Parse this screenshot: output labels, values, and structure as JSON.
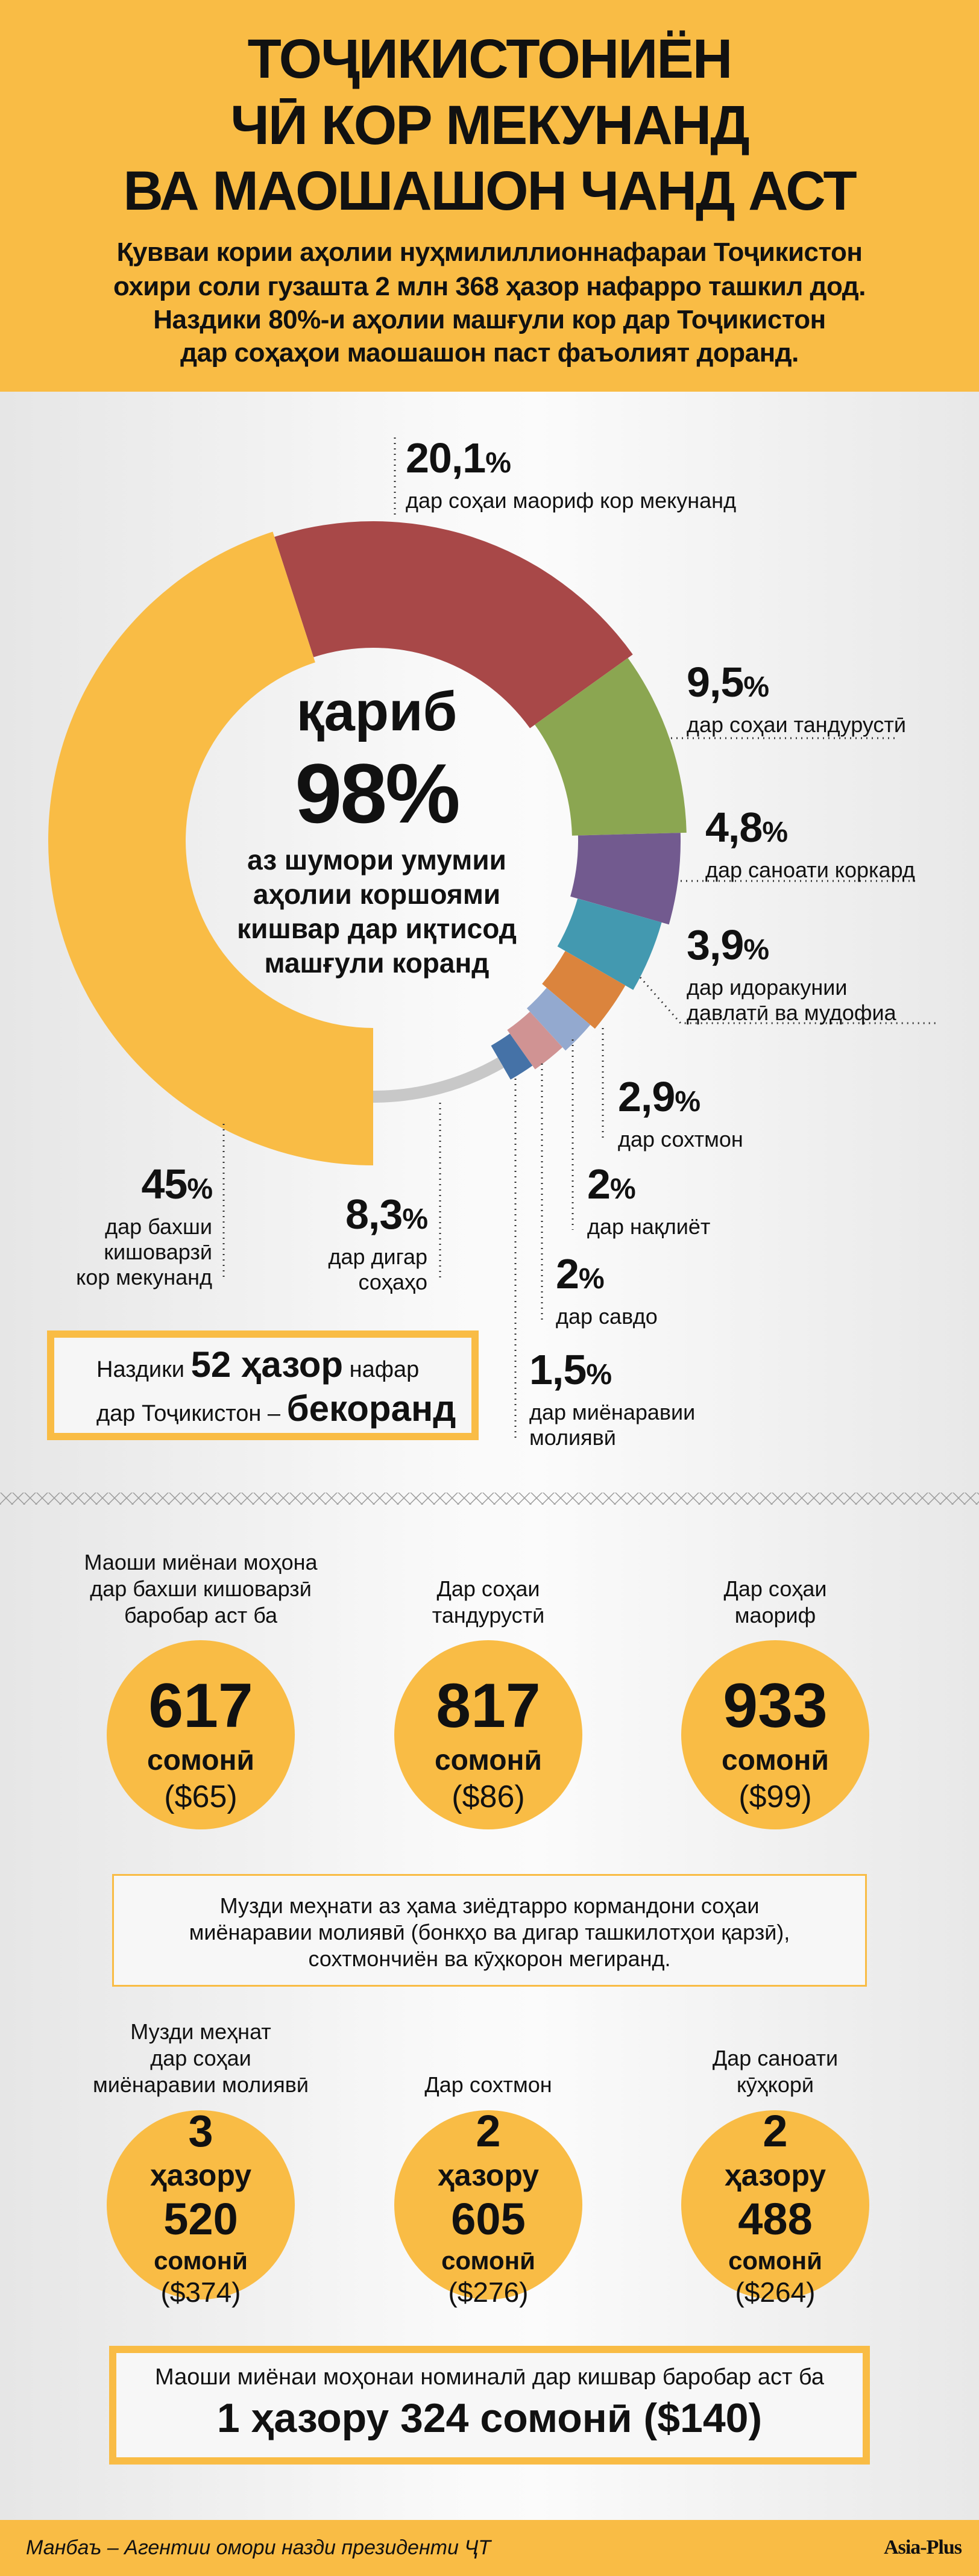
{
  "header": {
    "title_lines": [
      "ТОҶИКИСТОНИЁН",
      "ЧӢ КОР МЕКУНАНД",
      "ВА МАОШАШОН ЧАНД АСТ"
    ],
    "subtitle_lines": [
      "Қувваи кории аҳолии нуҳмилиллионнафараи Тоҷикистон",
      "охири соли гузашта 2 млн 368 ҳазор нафарро ташкил дод.",
      "Наздики 80%-и аҳолии машғули кор дар Тоҷикистон",
      "дар соҳаҳои маошашон паст фаъолият доранд."
    ],
    "background_color": "#f9bc45"
  },
  "chart_data": {
    "type": "pie",
    "variant": "donut",
    "percent_sign": "%",
    "center": {
      "prefix": "қариб",
      "value": "98%",
      "lines": [
        "аз шумори умумии",
        "аҳолии коршоями",
        "кишвар дар иқтисод",
        "машғули коранд"
      ]
    },
    "slices": [
      {
        "value": 20.1,
        "pct": "20,1",
        "label_lines": [
          "дар соҳаи маориф кор мекунанд"
        ],
        "color": "#a84848"
      },
      {
        "value": 9.5,
        "pct": "9,5",
        "label_lines": [
          "дар соҳаи тандурустӣ"
        ],
        "color": "#8ba651"
      },
      {
        "value": 4.8,
        "pct": "4,8",
        "label_lines": [
          "дар саноати коркард"
        ],
        "color": "#725a8f"
      },
      {
        "value": 3.9,
        "pct": "3,9",
        "label_lines": [
          "дар идоракунии",
          "давлатӣ ва мудофиа"
        ],
        "color": "#4399b0"
      },
      {
        "value": 2.9,
        "pct": "2,9",
        "label_lines": [
          "дар сохтмон"
        ],
        "color": "#db843d"
      },
      {
        "value": 2,
        "pct": "2",
        "label_lines": [
          "дар нақлиёт"
        ],
        "color": "#93a9cf"
      },
      {
        "value": 2,
        "pct": "2",
        "label_lines": [
          "дар савдо"
        ],
        "color": "#d09393"
      },
      {
        "value": 1.5,
        "pct": "1,5",
        "label_lines": [
          "дар миёнаравии",
          "молиявӣ"
        ],
        "color": "#4572a7"
      },
      {
        "value": 8.3,
        "pct": "8,3",
        "label_lines": [
          "дар дигар",
          "соҳаҳо"
        ],
        "color": "#c8c8c8"
      },
      {
        "value": 45,
        "pct": "45",
        "label_lines": [
          "дар бахши",
          "кишоварзӣ",
          "кор мекунанд"
        ],
        "color": "#f9bc45"
      }
    ]
  },
  "unemployed_box": {
    "pre": "Наздики",
    "bold": "52 ҳазор",
    "post": "нафар",
    "line2_pre": "дар Тоҷикистон –",
    "line2_bold": "бекоранд"
  },
  "wages_low": [
    {
      "caption_lines": [
        "Маоши миёнаи моҳона",
        "дар бахши кишоварзӣ",
        "баробар аст ба"
      ],
      "amount": "617",
      "currency": "сомонӣ",
      "usd": "($65)"
    },
    {
      "caption_lines": [
        "Дар соҳаи",
        "тандурустӣ"
      ],
      "amount": "817",
      "currency": "сомонӣ",
      "usd": "($86)"
    },
    {
      "caption_lines": [
        "Дар соҳаи",
        "маориф"
      ],
      "amount": "933",
      "currency": "сомонӣ",
      "usd": "($99)"
    }
  ],
  "note": {
    "lines": [
      "Музди меҳнати аз ҳама зиёдтарро кормандони соҳаи",
      "миёнаравии молиявӣ (бонкҳо ва дигар ташкилотҳои қарзӣ),",
      "сохтмончиён ва кӯҳкорон мегиранд."
    ]
  },
  "wages_high": [
    {
      "caption_lines": [
        "Музди меҳнат",
        "дар соҳаи",
        "миёнаравии молиявӣ"
      ],
      "thousands": "3",
      "thousand_word": "ҳазору",
      "amount": "520",
      "currency": "сомонӣ",
      "usd": "($374)"
    },
    {
      "caption_lines": [
        "Дар сохтмон"
      ],
      "thousands": "2",
      "thousand_word": "ҳазору",
      "amount": "605",
      "currency": "сомонӣ",
      "usd": "($276)"
    },
    {
      "caption_lines": [
        "Дар саноати",
        "кӯҳкорӣ"
      ],
      "thousands": "2",
      "thousand_word": "ҳазору",
      "amount": "488",
      "currency": "сомонӣ",
      "usd": "($264)"
    }
  ],
  "average": {
    "line1": "Маоши миёнаи моҳонаи номиналӣ дар кишвар баробар аст ба",
    "line2": "1 ҳазору 324 сомонӣ ($140)"
  },
  "footer": {
    "source": "Манбаъ – Агентии омори назди президенти ҶТ",
    "logo": "Asia-Plus"
  }
}
